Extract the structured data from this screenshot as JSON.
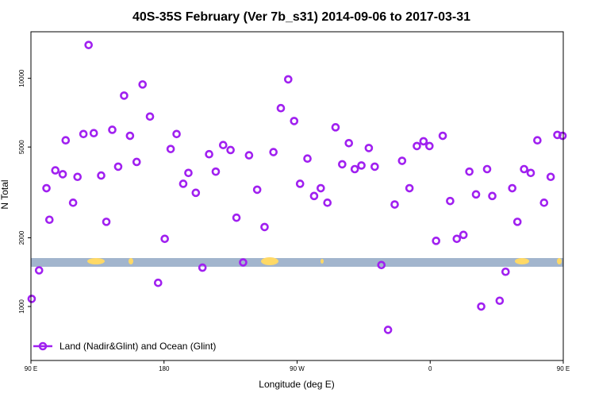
{
  "chart_data": {
    "type": "scatter",
    "title": "40S-35S February (Ver 7b_s31)   2014-09-06 to 2017-03-31",
    "xlabel": "Longitude (deg E)",
    "ylabel": "N Total",
    "x_scale": "longitude",
    "y_scale": "log",
    "xlim": [
      90,
      450
    ],
    "ylim": [
      580,
      16000
    ],
    "x_ticks": [
      {
        "value": 90,
        "label": "90 E"
      },
      {
        "value": 180,
        "label": "180"
      },
      {
        "value": 270,
        "label": "90 W"
      },
      {
        "value": 360,
        "label": "0"
      },
      {
        "value": 450,
        "label": "90 E"
      },
      {
        "value": 540,
        "label": "180"
      }
    ],
    "y_ticks": [
      {
        "value": 1000,
        "label": "1000"
      },
      {
        "value": 2000,
        "label": "2000"
      },
      {
        "value": 5000,
        "label": "5000"
      },
      {
        "value": 10000,
        "label": "10000"
      }
    ],
    "legend": {
      "position": "bottom-left",
      "entries": [
        "Land (Nadir&Glint) and Ocean (Glint)"
      ]
    },
    "colors": {
      "series": "#a020f0",
      "band": "#a2b5cd",
      "land": "#ffd966"
    },
    "series": [
      {
        "name": "Land (Nadir&Glint) and Ocean (Glint)",
        "points": [
          [
            90.5,
            1080
          ],
          [
            95.5,
            1440
          ],
          [
            100.5,
            3300
          ],
          [
            102.5,
            2400
          ],
          [
            106.5,
            3950
          ],
          [
            111.5,
            3800
          ],
          [
            113.5,
            5350
          ],
          [
            118.5,
            2850
          ],
          [
            121.5,
            3700
          ],
          [
            125.5,
            5700
          ],
          [
            129,
            14000
          ],
          [
            132.5,
            5750
          ],
          [
            137.5,
            3750
          ],
          [
            141,
            2350
          ],
          [
            145,
            5950
          ],
          [
            149,
            4100
          ],
          [
            153,
            8400
          ],
          [
            157,
            5600
          ],
          [
            161.5,
            4300
          ],
          [
            165.5,
            9400
          ],
          [
            170.5,
            6800
          ],
          [
            176,
            1270
          ],
          [
            180.5,
            1980
          ],
          [
            184.5,
            4900
          ],
          [
            188.5,
            5700
          ],
          [
            193,
            3450
          ],
          [
            196.5,
            3850
          ],
          [
            201.5,
            3150
          ],
          [
            206,
            1480
          ],
          [
            210.5,
            4650
          ],
          [
            215,
            3900
          ],
          [
            220,
            5100
          ],
          [
            225,
            4850
          ],
          [
            229,
            2450
          ],
          [
            233.5,
            1560
          ],
          [
            237.5,
            4600
          ],
          [
            243,
            3250
          ],
          [
            248,
            2230
          ],
          [
            254,
            4750
          ],
          [
            259,
            7400
          ],
          [
            264,
            9900
          ],
          [
            268,
            6500
          ],
          [
            272,
            3450
          ],
          [
            277,
            4450
          ],
          [
            281.5,
            3050
          ],
          [
            286,
            3300
          ],
          [
            290.5,
            2850
          ],
          [
            296,
            6100
          ],
          [
            300.5,
            4200
          ],
          [
            305,
            5200
          ],
          [
            309,
            4000
          ],
          [
            313.5,
            4150
          ],
          [
            318.5,
            4950
          ],
          [
            322.5,
            4100
          ],
          [
            327,
            1520
          ],
          [
            331.5,
            790
          ],
          [
            336,
            2800
          ],
          [
            341,
            4350
          ],
          [
            346,
            3300
          ],
          [
            351,
            5050
          ],
          [
            355.5,
            5300
          ],
          [
            359.5,
            5050
          ],
          [
            364,
            1940
          ],
          [
            368.5,
            5600
          ],
          [
            373.5,
            2900
          ],
          [
            378,
            1980
          ],
          [
            382.5,
            2060
          ],
          [
            386.5,
            3900
          ],
          [
            391,
            3100
          ],
          [
            394.5,
            1000
          ],
          [
            398.5,
            4000
          ],
          [
            402,
            3050
          ],
          [
            407,
            1060
          ],
          [
            411,
            1420
          ],
          [
            415.5,
            3300
          ],
          [
            419,
            2350
          ],
          [
            423.5,
            4000
          ],
          [
            428,
            3850
          ],
          [
            432.5,
            5350
          ],
          [
            437,
            2850
          ],
          [
            441.5,
            3700
          ],
          [
            446,
            5650
          ],
          [
            449.5,
            5600
          ]
        ]
      }
    ]
  }
}
